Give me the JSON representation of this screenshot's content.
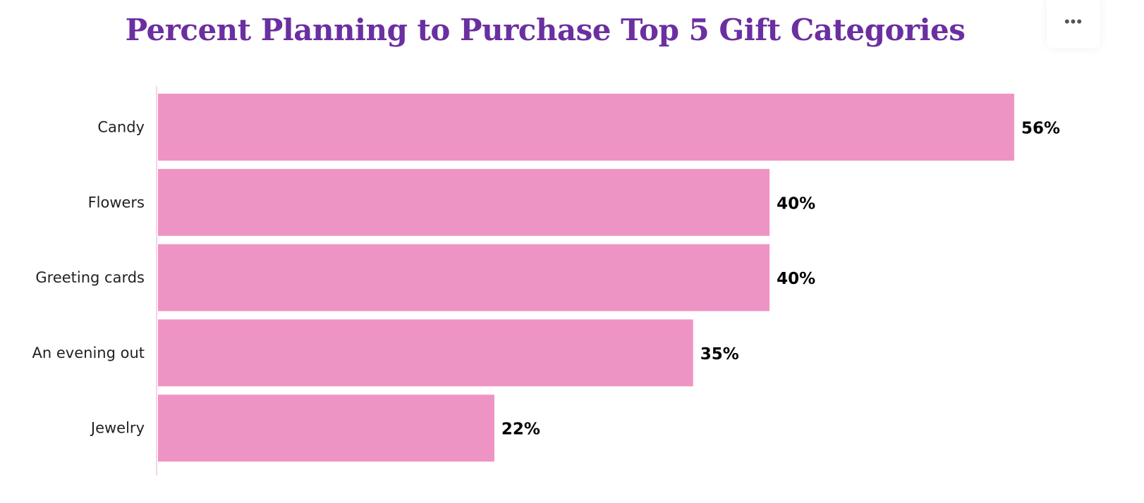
{
  "menu_icon": "more-horizontal-icon",
  "chart_data": {
    "type": "bar",
    "orientation": "horizontal",
    "title": "Percent Planning to Purchase Top 5 Gift Categories",
    "categories": [
      "Candy",
      "Flowers",
      "Greeting cards",
      "An evening out",
      "Jewelry"
    ],
    "values": [
      56,
      40,
      40,
      35,
      22
    ],
    "value_labels": [
      "56%",
      "40%",
      "40%",
      "35%",
      "22%"
    ],
    "xlabel": "",
    "ylabel": "",
    "grid": false,
    "legend": "none",
    "bar_color": "#EE94C4",
    "title_color": "#6B2FA0"
  }
}
